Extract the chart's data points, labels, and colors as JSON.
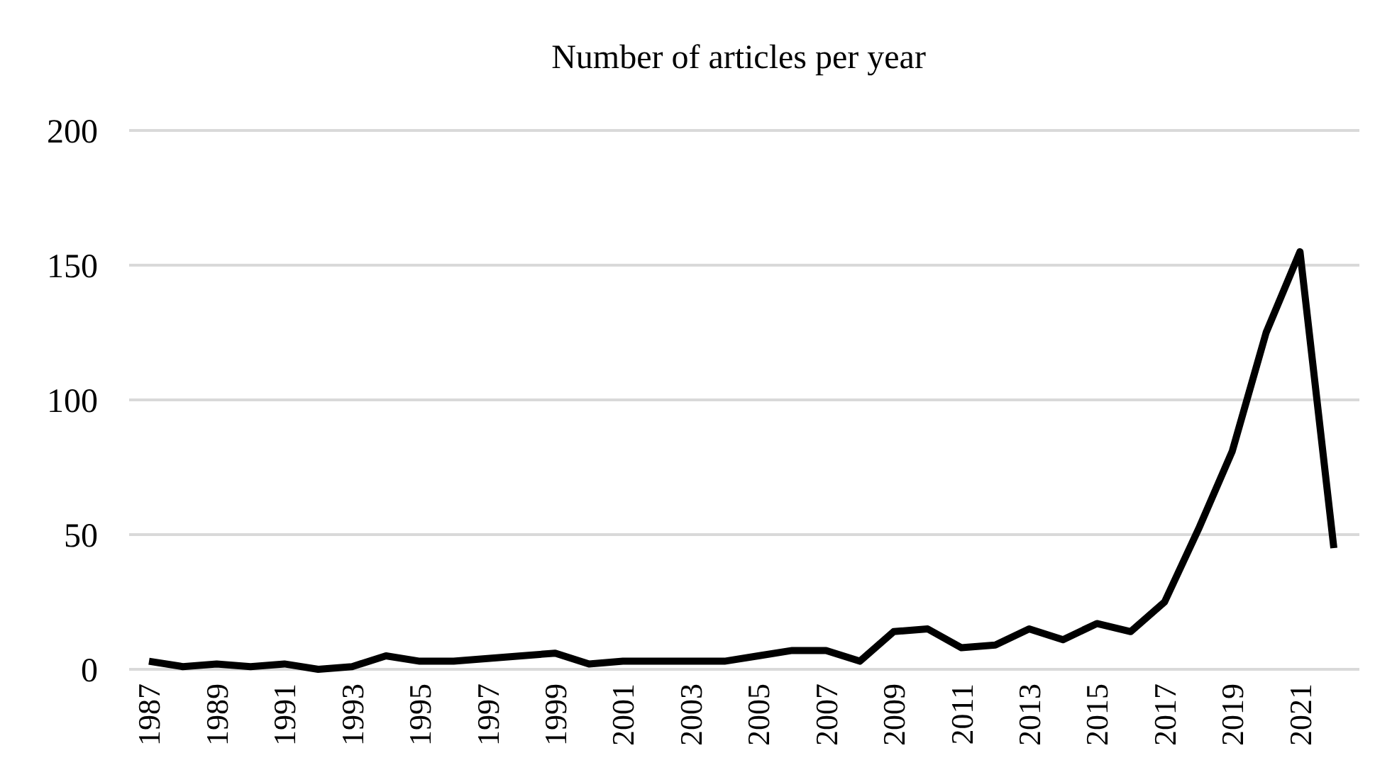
{
  "chart_data": {
    "type": "line",
    "title": "Number of articles per year",
    "categories": [
      "1987",
      null,
      "1989",
      null,
      "1991",
      null,
      "1993",
      null,
      "1995",
      null,
      "1997",
      null,
      "1999",
      null,
      "2001",
      null,
      "2003",
      null,
      "2005",
      null,
      "2007",
      null,
      "2009",
      null,
      "2011",
      null,
      "2013",
      null,
      "2015",
      null,
      "2017",
      null,
      "2019",
      null,
      "2021",
      null
    ],
    "series": [
      {
        "color": "#000000",
        "values": [
          3,
          1,
          2,
          1,
          2,
          0,
          1,
          5,
          3,
          3,
          4,
          5,
          6,
          2,
          3,
          3,
          3,
          3,
          5,
          7,
          7,
          3,
          14,
          15,
          8,
          9,
          15,
          11,
          17,
          14,
          25,
          52,
          81,
          125,
          155,
          45
        ]
      }
    ],
    "ylim": [
      0,
      200
    ],
    "yticks": [
      0,
      50,
      100,
      150,
      200
    ],
    "grid": "y",
    "marker": "none",
    "line_style": "solid"
  }
}
